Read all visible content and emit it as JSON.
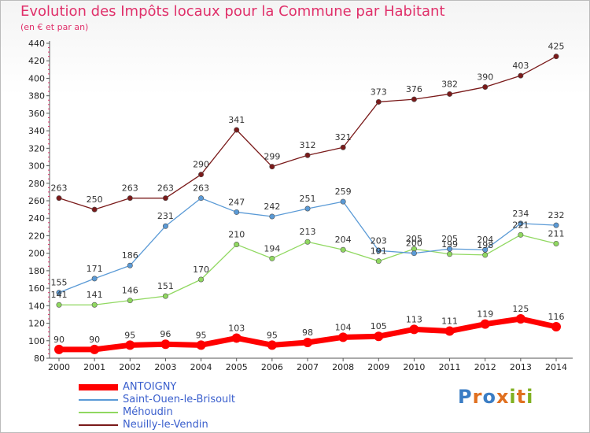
{
  "header": {
    "title": "Evolution des Impôts locaux pour la Commune par Habitant",
    "subtitle": "(en € et par an)"
  },
  "logo": {
    "text": "Proxiti",
    "colors": [
      "#3b7dc4",
      "#e07020",
      "#3b7dc4",
      "#e07020",
      "#80b020",
      "#e07020",
      "#80b020"
    ]
  },
  "chart_data": {
    "type": "line",
    "x": [
      "2000",
      "2001",
      "2002",
      "2003",
      "2004",
      "2005",
      "2006",
      "2007",
      "2008",
      "2009",
      "2010",
      "2011",
      "2012",
      "2013",
      "2014"
    ],
    "ylim": [
      80,
      440
    ],
    "yticks": [
      80,
      100,
      120,
      140,
      160,
      180,
      200,
      220,
      240,
      260,
      280,
      300,
      320,
      340,
      360,
      380,
      400,
      420,
      440
    ],
    "grid": false,
    "legend_position": "bottom-left",
    "series": [
      {
        "name": "ANTOIGNY",
        "color": "#ff0000",
        "values": [
          90,
          90,
          95,
          96,
          95,
          103,
          95,
          98,
          104,
          105,
          113,
          111,
          119,
          125,
          116
        ],
        "labels": [
          "90",
          "90",
          "95",
          "96",
          "95",
          "103",
          "95",
          "98",
          "104",
          "105",
          "113",
          "111",
          "119",
          "125",
          "116"
        ]
      },
      {
        "name": "Saint-Ouen-le-Brisoult",
        "color": "#5a9ad6",
        "values": [
          155,
          171,
          186,
          231,
          263,
          247,
          242,
          251,
          259,
          203,
          200,
          205,
          204,
          234,
          232
        ],
        "labels": [
          "155",
          "171",
          "186",
          "231",
          "263",
          "247",
          "242",
          "251",
          "259",
          "203",
          "200",
          "205",
          "204",
          "234",
          "232"
        ]
      },
      {
        "name": "Méhoudin",
        "color": "#90d860",
        "values": [
          141,
          141,
          146,
          151,
          170,
          210,
          194,
          213,
          204,
          191,
          205,
          199,
          198,
          221,
          211
        ],
        "labels": [
          "141",
          "141",
          "146",
          "151",
          "170",
          "210",
          "194",
          "213",
          "204",
          "191",
          "205",
          "199",
          "198",
          "221",
          "211"
        ]
      },
      {
        "name": "Neuilly-le-Vendin",
        "color": "#7a1a1a",
        "values": [
          263,
          250,
          263,
          263,
          290,
          341,
          299,
          312,
          321,
          373,
          376,
          382,
          390,
          403,
          425
        ],
        "labels": [
          "263",
          "250",
          "263",
          "263",
          "290",
          "341",
          "299",
          "312",
          "321",
          "373",
          "376",
          "382",
          "390",
          "403",
          "425"
        ]
      }
    ]
  }
}
